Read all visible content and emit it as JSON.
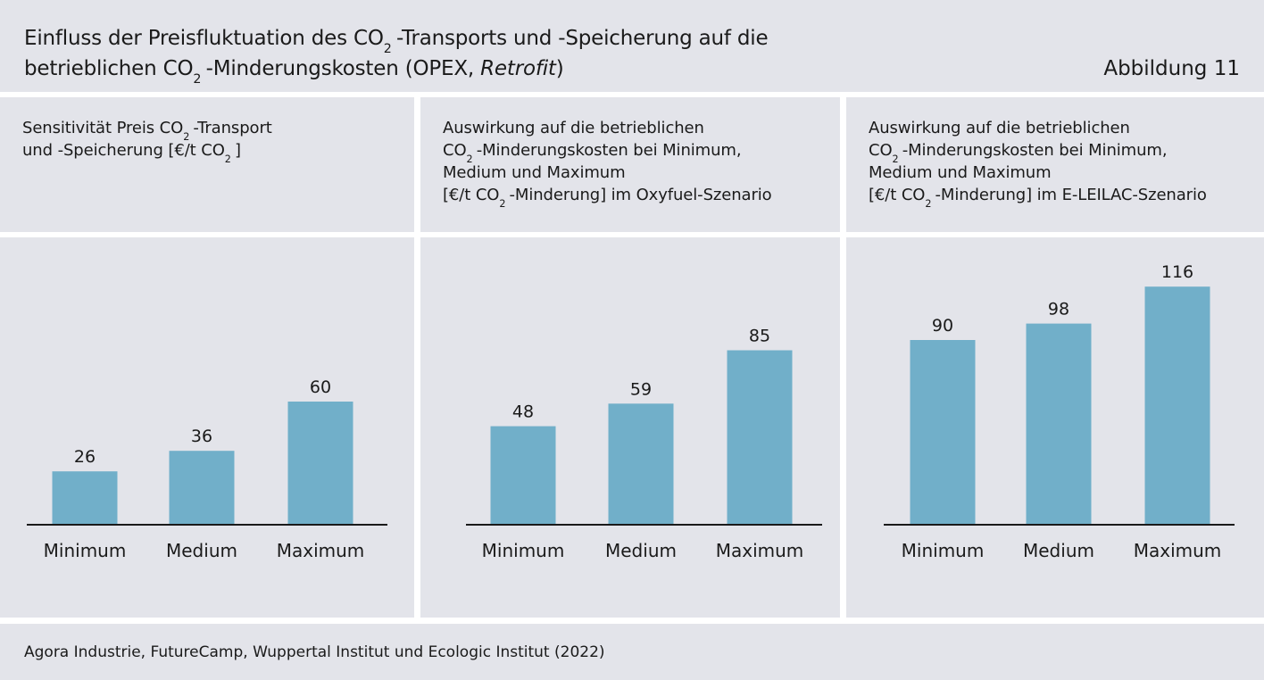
{
  "header": {
    "title_line1_a": "Einfluss der Preisfluktuation des CO",
    "title_sub": "2",
    "title_line1_b": "-Transports und -Speicherung auf die",
    "title_line2_a": "betrieblichen CO",
    "title_line2_b": "-Minderungskosten (OPEX, ",
    "title_line2_italic": "Retrofit",
    "title_line2_c": ")",
    "figure_label": "Abbildung 11"
  },
  "columns": [
    {
      "caption_line1_a": "Sensitivität Preis CO",
      "caption_line1_b": "-Transport",
      "caption_line2_a": "und -Speicherung [€/t CO",
      "caption_line2_b": "]",
      "sub": "2"
    },
    {
      "caption_line1": "Auswirkung auf die betrieblichen",
      "caption_line2_a": "CO",
      "caption_line2_b": "-Minderungskosten bei Minimum,",
      "caption_line3": "Medium und Maximum",
      "caption_line4_a": "[€/t CO",
      "caption_line4_b": "-Minderung] im Oxyfuel-Szenario",
      "sub": "2"
    },
    {
      "caption_line1": "Auswirkung auf die betrieblichen",
      "caption_line2_a": "CO",
      "caption_line2_b": "-Minderungskosten bei Minimum,",
      "caption_line3": "Medium und Maximum",
      "caption_line4_a": "[€/t CO",
      "caption_line4_b": "-Minderung] im E-LEILAC-Szenario",
      "sub": "2"
    }
  ],
  "footer": {
    "source": "Agora Industrie, FutureCamp, Wuppertal Institut und Ecologic Institut (2022)"
  },
  "colors": {
    "bar": "#71afc9",
    "panel": "#e3e4ea"
  },
  "chart_data": [
    {
      "type": "bar",
      "categories": [
        "Minimum",
        "Medium",
        "Maximum"
      ],
      "values": [
        26,
        36,
        60
      ],
      "ylim": [
        0,
        116
      ]
    },
    {
      "type": "bar",
      "categories": [
        "Minimum",
        "Medium",
        "Maximum"
      ],
      "values": [
        48,
        59,
        85
      ],
      "ylim": [
        0,
        116
      ]
    },
    {
      "type": "bar",
      "categories": [
        "Minimum",
        "Medium",
        "Maximum"
      ],
      "values": [
        90,
        98,
        116
      ],
      "ylim": [
        0,
        116
      ]
    }
  ]
}
